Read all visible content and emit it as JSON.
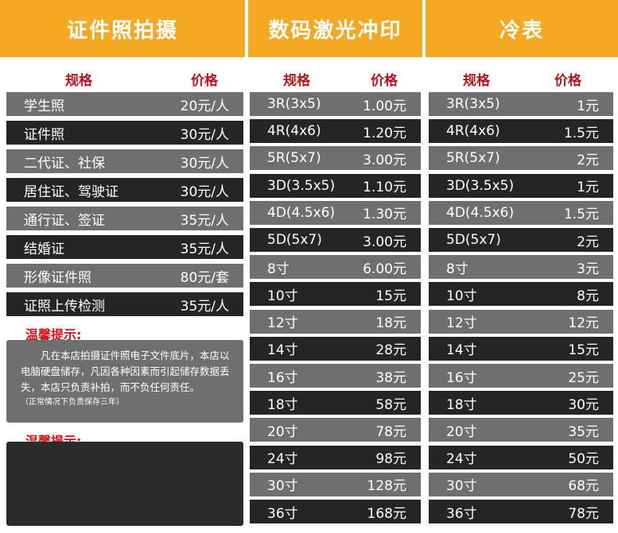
{
  "col1": {
    "title": "证件照拍摄",
    "spec_label": "规格",
    "price_label": "价格",
    "rows": [
      {
        "name": "学生照",
        "price": "20元/人"
      },
      {
        "name": "证件照",
        "price": "30元/人"
      },
      {
        "name": "二代证、社保",
        "price": "30元/人"
      },
      {
        "name": "居住证、驾驶证",
        "price": "30元/人"
      },
      {
        "name": "通行证、签证",
        "price": "35元/人"
      },
      {
        "name": "结婚证",
        "price": "35元/人"
      },
      {
        "name": "形像证件照",
        "price": "80元/套"
      },
      {
        "name": "证照上传检测",
        "price": "35元/人"
      }
    ],
    "tip1_title": "温馨提示:",
    "tip1_body": "凡在本店拍摄证件照电子文件底片，本店以电脑硬盘储存，凡因各种因素而引起储存数据丢失，本店只负责补拍，而不负任何责任。",
    "tip1_note": "（正常情况下负责保存三年）",
    "tip2_title": "温馨提示:"
  },
  "col2": {
    "title": "数码激光冲印",
    "spec_label": "规格",
    "price_label": "价格",
    "rows": [
      {
        "name": "3R(3x5)",
        "price": "1.00元"
      },
      {
        "name": "4R(4x6)",
        "price": "1.20元"
      },
      {
        "name": "5R(5x7)",
        "price": "3.00元"
      },
      {
        "name": "3D(3.5x5)",
        "price": "1.10元"
      },
      {
        "name": "4D(4.5x6)",
        "price": "1.30元"
      },
      {
        "name": "5D(5x7)",
        "price": "3.00元"
      },
      {
        "name": "8寸",
        "price": "6.00元"
      },
      {
        "name": "10寸",
        "price": "15元"
      },
      {
        "name": "12寸",
        "price": "18元"
      },
      {
        "name": "14寸",
        "price": "28元"
      },
      {
        "name": "16寸",
        "price": "38元"
      },
      {
        "name": "18寸",
        "price": "58元"
      },
      {
        "name": "20寸",
        "price": "78元"
      },
      {
        "name": "24寸",
        "price": "98元"
      },
      {
        "name": "30寸",
        "price": "128元"
      },
      {
        "name": "36寸",
        "price": "168元"
      }
    ]
  },
  "col3": {
    "title": "冷表",
    "spec_label": "规格",
    "price_label": "价格",
    "rows": [
      {
        "name": "3R(3x5)",
        "price": "1元"
      },
      {
        "name": "4R(4x6)",
        "price": "1.5元"
      },
      {
        "name": "5R(5x7)",
        "price": "2元"
      },
      {
        "name": "3D(3.5x5)",
        "price": "1元"
      },
      {
        "name": "4D(4.5x6)",
        "price": "1.5元"
      },
      {
        "name": "5D(5x7)",
        "price": "2元"
      },
      {
        "name": "8寸",
        "price": "3元"
      },
      {
        "name": "10寸",
        "price": "8元"
      },
      {
        "name": "12寸",
        "price": "12元"
      },
      {
        "name": "14寸",
        "price": "15元"
      },
      {
        "name": "16寸",
        "price": "25元"
      },
      {
        "name": "18寸",
        "price": "30元"
      },
      {
        "name": "20寸",
        "price": "35元"
      },
      {
        "name": "24寸",
        "price": "50元"
      },
      {
        "name": "30寸",
        "price": "68元"
      },
      {
        "name": "36寸",
        "price": "78元"
      }
    ]
  }
}
